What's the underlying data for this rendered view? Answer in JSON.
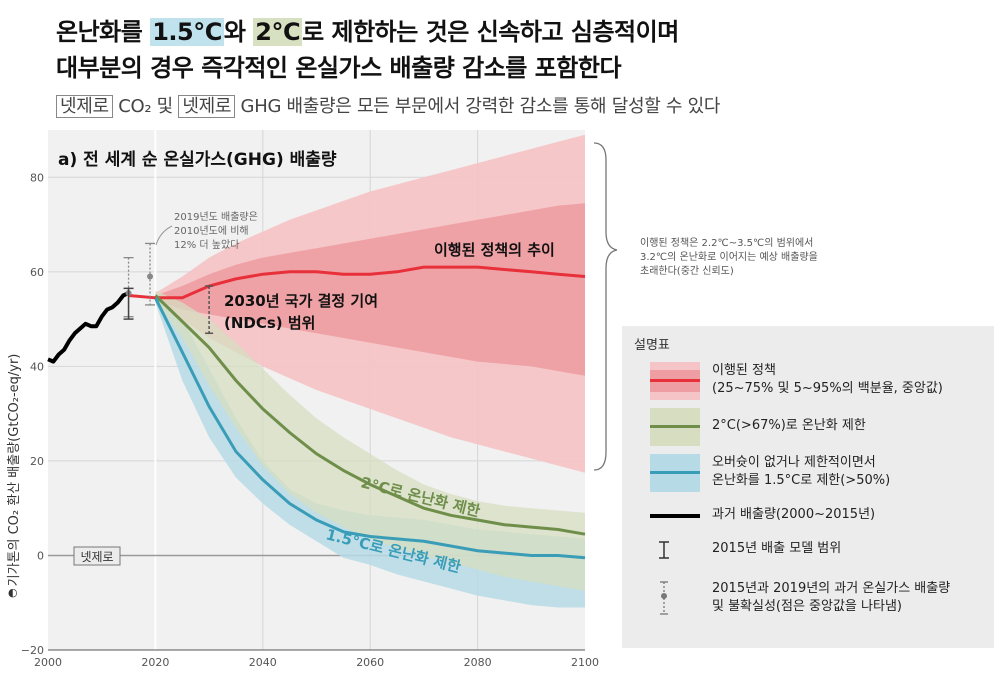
{
  "header": {
    "title_line1_pre": "온난화를 ",
    "title_line1_hl1": "1.5°C",
    "title_line1_mid": "와 ",
    "title_line1_hl2": "2°C",
    "title_line1_post": "로 제한하는 것은 신속하고 심층적이며",
    "title_line2": "대부분의 경우 즉각적인 온실가스 배출량 감소를 포함한다",
    "subtitle_box1": "넷제로",
    "subtitle_co2": " CO₂ 및 ",
    "subtitle_box2": "넷제로",
    "subtitle_rest": " GHG 배출량은 모든 부문에서 강력한 감소를 통해 달성할 수 있다"
  },
  "colors": {
    "policy_light": "#f4c4c6",
    "policy_mid": "#ee9da2",
    "policy_line": "#e8303a",
    "c2_band": "#d6ddc0",
    "c2_line": "#6f8e4a",
    "c15_band": "#b6dbe6",
    "c15_line": "#3a9db8",
    "historic": "#000000"
  },
  "chart_data": {
    "type": "area",
    "panel_title": "a) 전 세계 순 온실가스(GHG) 배출량",
    "ylabel": "기가톤의 CO₂ 환산 배출량(GtCO₂-eq/yr)",
    "xlim": [
      2000,
      2100
    ],
    "ylim": [
      -20,
      90
    ],
    "x_ticks": [
      2000,
      2020,
      2040,
      2060,
      2080,
      2100
    ],
    "y_ticks": [
      -20,
      0,
      20,
      40,
      60,
      80
    ],
    "net_zero_label": "넷제로",
    "historic": {
      "name": "과거 배출량(2000~2015년)",
      "x": [
        2000,
        2001,
        2002,
        2003,
        2004,
        2005,
        2006,
        2007,
        2008,
        2009,
        2010,
        2011,
        2012,
        2013,
        2014,
        2015
      ],
      "y": [
        41.5,
        41,
        42.5,
        43.5,
        45.5,
        47,
        48,
        49,
        48.5,
        48.5,
        50.5,
        52,
        52.5,
        53.5,
        55,
        55.5
      ]
    },
    "policy": {
      "name": "이행된 정책의 추이",
      "x": [
        2020,
        2025,
        2030,
        2035,
        2040,
        2045,
        2050,
        2055,
        2060,
        2065,
        2070,
        2075,
        2080,
        2085,
        2090,
        2095,
        2100
      ],
      "median": [
        54.5,
        54.5,
        57,
        58.5,
        59.5,
        60,
        60,
        59.5,
        59.5,
        60,
        61,
        61,
        61,
        60.5,
        60,
        59.5,
        59
      ],
      "p25": [
        54,
        52,
        51,
        50,
        49,
        48,
        47,
        46,
        45,
        44,
        43,
        42,
        41,
        40.5,
        40,
        39,
        38
      ],
      "p75": [
        55,
        57,
        59.5,
        61.5,
        63,
        64,
        65,
        66,
        67,
        68,
        69,
        70,
        71,
        72,
        73,
        74,
        74.5
      ],
      "p5": [
        53.5,
        50,
        46,
        43,
        40,
        37.5,
        35,
        33,
        31,
        29,
        27,
        25,
        23.5,
        22,
        20.5,
        19,
        17.5
      ],
      "p95": [
        55.5,
        59,
        63,
        66,
        68.5,
        71,
        73,
        75,
        77,
        78.5,
        80,
        81.5,
        83,
        84.5,
        86,
        87.5,
        89
      ]
    },
    "c2": {
      "name": "2°C로 온난화 제한",
      "x": [
        2020,
        2025,
        2030,
        2035,
        2040,
        2045,
        2050,
        2055,
        2060,
        2065,
        2070,
        2075,
        2080,
        2085,
        2090,
        2095,
        2100
      ],
      "median": [
        55,
        49.5,
        44,
        37,
        31,
        26,
        21.5,
        18,
        15,
        12.5,
        10,
        8.5,
        7.5,
        6.5,
        6,
        5.5,
        4.5
      ],
      "lo": [
        54,
        46,
        36,
        27,
        19,
        13,
        9,
        6,
        3.5,
        1.5,
        0,
        -1.5,
        -3,
        -4.5,
        -5.5,
        -6.5,
        -7.5
      ],
      "hi": [
        56,
        53.5,
        50,
        45,
        39.5,
        34,
        29,
        25,
        21.5,
        18,
        15,
        13,
        11.5,
        10.5,
        10,
        9.5,
        9
      ]
    },
    "c15": {
      "name": "1.5°C로 온난화 제한",
      "x": [
        2020,
        2025,
        2030,
        2035,
        2040,
        2045,
        2050,
        2055,
        2060,
        2065,
        2070,
        2075,
        2080,
        2085,
        2090,
        2095,
        2100
      ],
      "median": [
        54.5,
        43,
        31.5,
        22,
        16,
        11,
        7.5,
        5,
        4,
        3.5,
        3,
        2,
        1,
        0.5,
        0,
        0,
        -0.5
      ],
      "lo": [
        53.5,
        37,
        25,
        16.5,
        11,
        6.5,
        3,
        -0.5,
        -2,
        -4,
        -5.5,
        -7,
        -8.5,
        -9.5,
        -10.5,
        -11,
        -11
      ],
      "hi": [
        55.5,
        50,
        39.5,
        29,
        20,
        14,
        11,
        9.5,
        8.5,
        8,
        7.5,
        6.5,
        5.5,
        5,
        4.5,
        4,
        3.5
      ]
    },
    "model_range_2015": {
      "x": 2015,
      "min": 50,
      "max": 56.5,
      "median": 55
    },
    "uncertainty_2015": {
      "x": 2015,
      "min": 50.5,
      "max": 63,
      "median": 55.5
    },
    "uncertainty_2019": {
      "x": 2019,
      "min": 53,
      "max": 66,
      "median": 59
    },
    "ndc_range": {
      "x": 2030,
      "min": 47,
      "max": 57
    },
    "annotations": {
      "policy_label": "이행된 정책의 추이",
      "ndc_label_1": "2030년 국가 결정 기여",
      "ndc_label_2": "(NDCs) 범위",
      "c2_label": "2°C로 온난화 제한",
      "c15_label": "1.5°C로 온난화 제한",
      "note_2019_1": "2019년도 배출량은",
      "note_2019_2": "2010년도에 비해",
      "note_2019_3": "12% 더 높았다",
      "brace_note_1": "이행된 정책은 2.2℃~3.5℃의 범위에서",
      "brace_note_2": "3.2℃의 온난화로 이어지는 예상 배출량을",
      "brace_note_3": "초래한다(중간 신뢰도)"
    }
  },
  "legend": {
    "title": "설명표",
    "items": [
      {
        "line1": "이행된 정책",
        "line2": "(25~75% 및 5~95%의 백분율, 중앙값)"
      },
      {
        "line1": "2°C(>67%)로 온난화 제한"
      },
      {
        "line1": "오버슛이 없거나 제한적이면서",
        "line2": "온난화를 1.5°C로 제한(>50%)"
      },
      {
        "line1": "과거 배출량(2000~2015년)"
      },
      {
        "line1": "2015년 배출 모델 범위"
      },
      {
        "line1": "2015년과 2019년의 과거 온실가스 배출량",
        "line2": "및 불확실성(점은 중앙값을 나타냄)"
      }
    ]
  }
}
